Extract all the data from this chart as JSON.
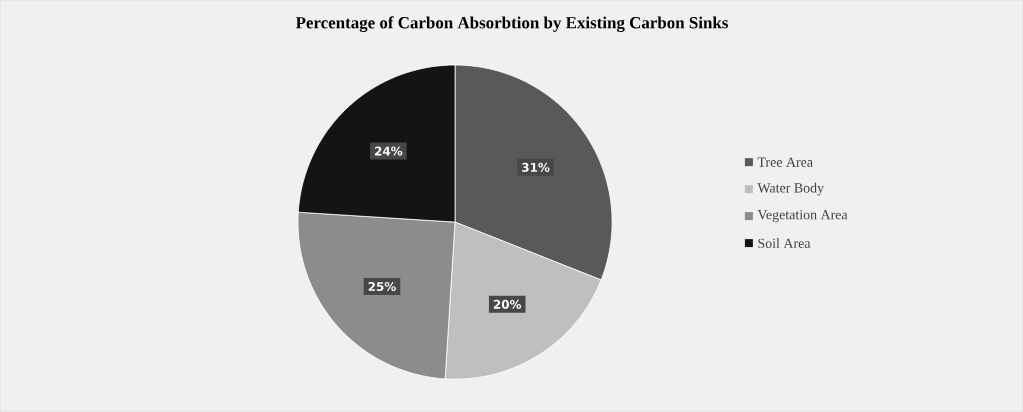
{
  "chart_data": {
    "type": "pie",
    "title": "Percentage of Carbon Absorbtion by Existing Carbon Sinks",
    "categories": [
      "Tree Area",
      "Water Body",
      "Vegetation Area",
      "Soil Area"
    ],
    "values": [
      31,
      20,
      25,
      24
    ],
    "value_labels": [
      "31%",
      "20%",
      "25%",
      "24%"
    ],
    "colors": [
      "#595959",
      "#bfbfbf",
      "#8c8c8c",
      "#141414"
    ],
    "legend": "right"
  }
}
